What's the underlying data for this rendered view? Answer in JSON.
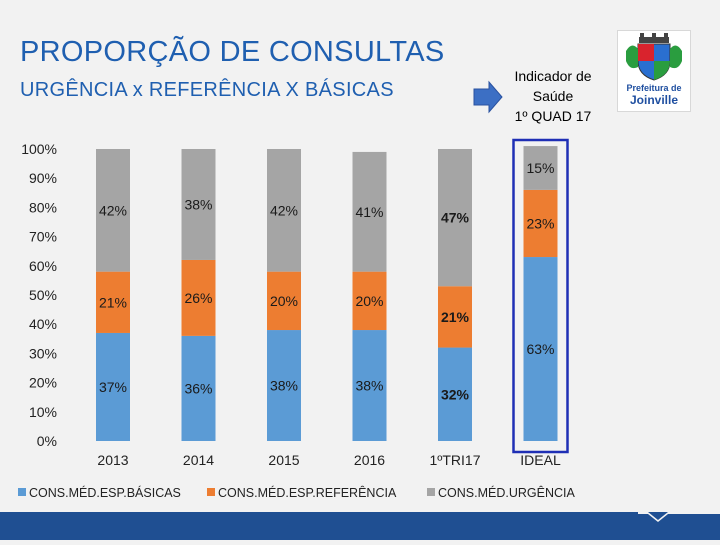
{
  "header": {
    "title": "PROPORÇÃO DE CONSULTAS",
    "subtitle": "URGÊNCIA x REFERÊNCIA X BÁSICAS",
    "indicator_line1": "Indicador de",
    "indicator_line2": "Saúde",
    "indicator_line3": "1º QUAD 17",
    "logo_line1": "Prefeitura de",
    "logo_line2": "Joinville"
  },
  "colors": {
    "basicas": "#5b9bd5",
    "referencia": "#ed7d31",
    "urgencia": "#a5a5a5",
    "title": "#1f5fb0",
    "highlight_box": "#1f2fb5",
    "footer": "#1f4f92"
  },
  "chart_data": {
    "type": "bar",
    "stacked": true,
    "percent_stacked": true,
    "categories": [
      "2013",
      "2014",
      "2015",
      "2016",
      "1ºTRI17",
      "IDEAL"
    ],
    "series": [
      {
        "name": "CONS.MÉD.ESP.BÁSICAS",
        "values": [
          37,
          36,
          38,
          38,
          32,
          63
        ],
        "labels": [
          "37%",
          "36%",
          "38%",
          "38%",
          "32%",
          "63%"
        ]
      },
      {
        "name": "CONS.MÉD.ESP.REFERÊNCIA",
        "values": [
          21,
          26,
          20,
          20,
          21,
          23
        ],
        "labels": [
          "21%",
          "26%",
          "20%",
          "20%",
          "21%",
          "23%"
        ]
      },
      {
        "name": "CONS.MÉD.URGÊNCIA",
        "values": [
          42,
          38,
          42,
          41,
          47,
          15
        ],
        "labels": [
          "42%",
          "38%",
          "42%",
          "41%",
          "47%",
          "15%"
        ]
      }
    ],
    "y_ticks": [
      "0%",
      "10%",
      "20%",
      "30%",
      "40%",
      "50%",
      "60%",
      "70%",
      "80%",
      "90%",
      "100%"
    ],
    "ylim": [
      0,
      100
    ],
    "bold_category": "1ºTRI17",
    "highlighted_category": "IDEAL",
    "legend_position": "bottom",
    "grid": false
  }
}
